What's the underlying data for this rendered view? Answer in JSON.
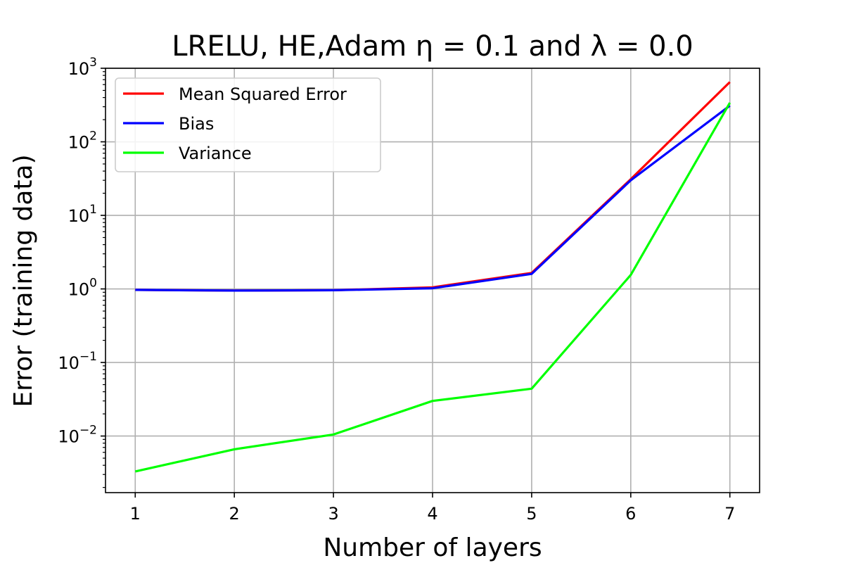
{
  "chart_data": {
    "type": "line",
    "title": "LRELU, HE,Adam η = 0.1 and λ = 0.0",
    "xlabel": "Number of layers",
    "ylabel": "Error (training data)",
    "x": [
      1,
      2,
      3,
      4,
      5,
      6,
      7
    ],
    "xlim": [
      0.7,
      7.3
    ],
    "ylim": [
      0.0017,
      1000
    ],
    "yscale": "log",
    "grid": true,
    "legend_position": "top-left",
    "x_ticks": [
      "1",
      "2",
      "3",
      "4",
      "5",
      "6",
      "7"
    ],
    "y_ticks": [
      {
        "value": 0.01,
        "base": "10",
        "exp": "−2"
      },
      {
        "value": 0.1,
        "base": "10",
        "exp": "−1"
      },
      {
        "value": 1,
        "base": "10",
        "exp": "0"
      },
      {
        "value": 10,
        "base": "10",
        "exp": "1"
      },
      {
        "value": 100,
        "base": "10",
        "exp": "2"
      },
      {
        "value": 1000,
        "base": "10",
        "exp": "3"
      }
    ],
    "series": [
      {
        "name": "Mean Squared Error",
        "color": "#ff0000",
        "values": [
          0.97,
          0.95,
          0.96,
          1.05,
          1.65,
          31,
          650
        ]
      },
      {
        "name": "Bias",
        "color": "#0000ff",
        "values": [
          0.97,
          0.95,
          0.96,
          1.02,
          1.6,
          30,
          310
        ]
      },
      {
        "name": "Variance",
        "color": "#00ff00",
        "values": [
          0.0033,
          0.0066,
          0.0105,
          0.03,
          0.044,
          1.55,
          340
        ]
      }
    ]
  }
}
